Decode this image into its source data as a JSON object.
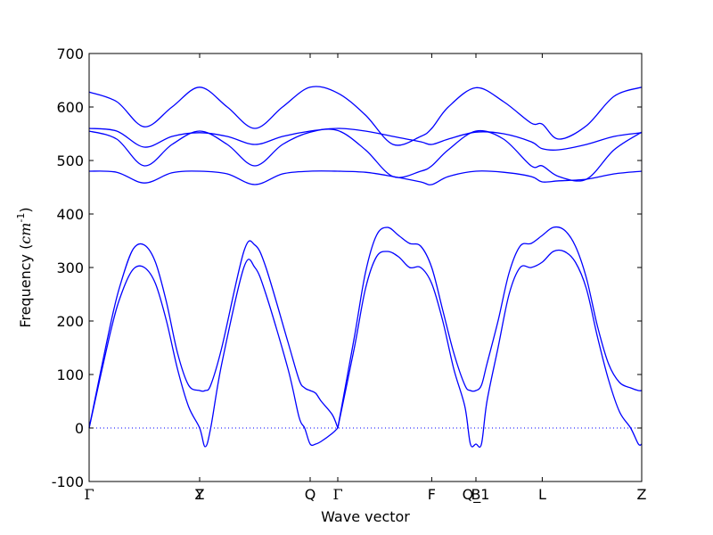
{
  "chart_data": {
    "type": "line",
    "title": "",
    "xlabel": "Wave vector",
    "ylabel": "Frequency ($cm^{-1}$)",
    "ylim": [
      -100,
      700
    ],
    "yticks": [
      -100,
      0,
      100,
      200,
      300,
      400,
      500,
      600,
      700
    ],
    "grid": false,
    "legend": "none",
    "line_color": "#0000ff",
    "zero_line_color": "#0000ff",
    "high_symmetry_points": [
      {
        "label": "Γ",
        "x": 0.0
      },
      {
        "label": "Y",
        "x": 1.0
      },
      {
        "label": "Z",
        "x": 1.0
      },
      {
        "label": "Q",
        "x": 2.0
      },
      {
        "label": "Γ",
        "x": 2.25
      },
      {
        "label": "F",
        "x": 3.1
      },
      {
        "label": "Q_1",
        "x": 3.5
      },
      {
        "label": "B",
        "x": 3.5
      },
      {
        "label": "L",
        "x": 4.1
      },
      {
        "label": "Z",
        "x": 5.0
      }
    ],
    "xlim": [
      0,
      5.0
    ],
    "series": [
      {
        "x": [
          0,
          0.2,
          0.3,
          0.4,
          0.5,
          0.6,
          0.7,
          0.8,
          0.9,
          1.0,
          1.05,
          1.1,
          1.2,
          1.4,
          1.5,
          1.6,
          1.8,
          1.9,
          1.95,
          2.0,
          2.05,
          2.1,
          2.2,
          2.25
        ],
        "values": [
          0,
          185,
          255,
          297,
          300,
          270,
          200,
          110,
          40,
          0,
          -35,
          0,
          120,
          300,
          300,
          250,
          110,
          20,
          0,
          -30,
          -30,
          -25,
          -10,
          0
        ]
      },
      {
        "x": [
          0,
          0.2,
          0.3,
          0.4,
          0.5,
          0.6,
          0.7,
          0.8,
          0.9,
          1.0,
          1.05,
          1.1,
          1.2,
          1.4,
          1.5,
          1.6,
          1.8,
          1.9,
          1.95,
          2.0,
          2.05,
          2.1,
          2.2,
          2.25
        ],
        "values": [
          0,
          200,
          280,
          335,
          342,
          310,
          235,
          140,
          80,
          70,
          70,
          80,
          150,
          330,
          342,
          300,
          160,
          90,
          75,
          70,
          65,
          50,
          25,
          0
        ]
      },
      {
        "x": [
          2.25,
          2.4,
          2.5,
          2.6,
          2.7,
          2.8,
          2.9,
          3.0,
          3.1,
          3.2,
          3.3,
          3.4,
          3.45,
          3.5,
          3.55,
          3.6,
          3.7,
          3.8,
          3.9,
          4.0,
          4.1,
          4.2,
          4.3,
          4.4,
          4.5,
          4.6,
          4.7,
          4.8,
          4.9,
          4.97,
          5.0
        ],
        "values": [
          0,
          150,
          260,
          320,
          330,
          320,
          300,
          300,
          270,
          200,
          110,
          40,
          -30,
          -30,
          -30,
          50,
          150,
          250,
          300,
          300,
          310,
          330,
          330,
          310,
          260,
          170,
          90,
          30,
          0,
          -30,
          -30
        ]
      },
      {
        "x": [
          2.25,
          2.4,
          2.5,
          2.6,
          2.7,
          2.8,
          2.9,
          3.0,
          3.1,
          3.2,
          3.3,
          3.4,
          3.45,
          3.5,
          3.55,
          3.6,
          3.7,
          3.8,
          3.9,
          4.0,
          4.1,
          4.2,
          4.3,
          4.4,
          4.5,
          4.6,
          4.7,
          4.8,
          4.9,
          4.97,
          5.0
        ],
        "values": [
          0,
          170,
          290,
          360,
          375,
          360,
          345,
          340,
          300,
          220,
          140,
          80,
          70,
          70,
          80,
          120,
          200,
          290,
          340,
          345,
          360,
          375,
          370,
          340,
          280,
          190,
          120,
          85,
          75,
          70,
          70
        ]
      },
      {
        "x": [
          0,
          0.25,
          0.5,
          0.75,
          1.0,
          1.25,
          1.5,
          1.75,
          2.0,
          2.25,
          2.5,
          2.75,
          3.0,
          3.1,
          3.25,
          3.5,
          3.75,
          4.0,
          4.1,
          4.25,
          4.5,
          4.75,
          5.0
        ],
        "values": [
          480,
          478,
          458,
          477,
          480,
          475,
          455,
          475,
          480,
          480,
          478,
          470,
          460,
          455,
          470,
          480,
          478,
          470,
          460,
          462,
          465,
          475,
          480
        ]
      },
      {
        "x": [
          0,
          0.25,
          0.5,
          0.75,
          1.0,
          1.25,
          1.5,
          1.75,
          2.0,
          2.25,
          2.5,
          2.75,
          3.0,
          3.1,
          3.25,
          3.5,
          3.75,
          4.0,
          4.1,
          4.25,
          4.5,
          4.75,
          5.0
        ],
        "values": [
          555,
          540,
          490,
          530,
          555,
          530,
          490,
          530,
          553,
          556,
          520,
          470,
          480,
          490,
          520,
          555,
          540,
          490,
          490,
          470,
          465,
          520,
          553
        ]
      },
      {
        "x": [
          0,
          0.25,
          0.5,
          0.75,
          1.0,
          1.25,
          1.5,
          1.75,
          2.0,
          2.25,
          2.5,
          2.75,
          3.0,
          3.1,
          3.25,
          3.5,
          3.75,
          4.0,
          4.1,
          4.25,
          4.5,
          4.75,
          5.0
        ],
        "values": [
          560,
          555,
          525,
          545,
          552,
          545,
          530,
          545,
          555,
          560,
          555,
          545,
          535,
          530,
          540,
          553,
          550,
          535,
          522,
          520,
          530,
          545,
          552
        ]
      },
      {
        "x": [
          0,
          0.25,
          0.5,
          0.75,
          1.0,
          1.25,
          1.5,
          1.75,
          2.0,
          2.25,
          2.5,
          2.75,
          3.0,
          3.1,
          3.25,
          3.5,
          3.75,
          4.0,
          4.1,
          4.25,
          4.5,
          4.75,
          5.0
        ],
        "values": [
          628,
          610,
          563,
          600,
          637,
          600,
          560,
          600,
          637,
          626,
          585,
          530,
          545,
          560,
          600,
          636,
          610,
          570,
          568,
          540,
          565,
          620,
          637
        ]
      }
    ]
  }
}
